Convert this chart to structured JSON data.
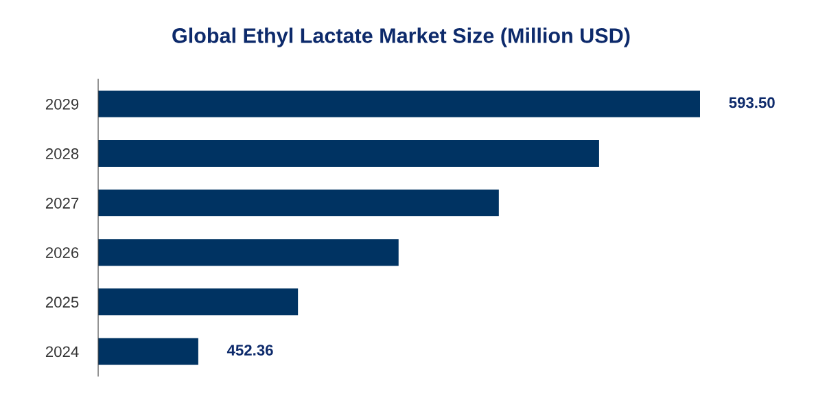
{
  "chart_data": {
    "type": "bar",
    "orientation": "horizontal",
    "title": "Global Ethyl Lactate Market Size (Million USD)",
    "categories": [
      "2029",
      "2028",
      "2027",
      "2026",
      "2025",
      "2024"
    ],
    "values": [
      593.5,
      565.1,
      536.9,
      508.7,
      480.4,
      452.36
    ],
    "value_labels": [
      "593.50",
      null,
      null,
      null,
      null,
      "452.36"
    ],
    "color": "#003362",
    "xlim": [
      424.2,
      593.5
    ],
    "tick_labels": "y",
    "grid": false,
    "legend": false
  }
}
